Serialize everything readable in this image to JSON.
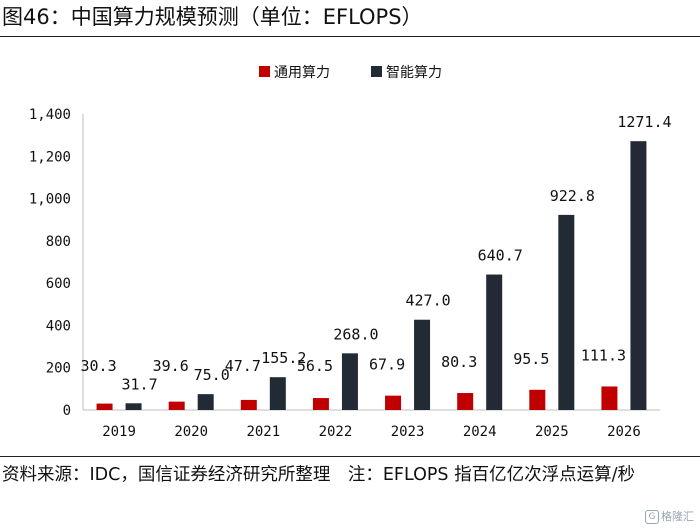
{
  "figure_title": "图46：中国算力规模预测（单位：EFLOPS）",
  "source_note": "资料来源：IDC，国信证券经济研究所整理　注：EFLOPS 指百亿亿次浮点运算/秒",
  "watermark": "格隆汇",
  "watermark_glyph": "G",
  "colors": {
    "general": "#c00000",
    "intelligent": "#222a35",
    "axis": "#bfbfbf",
    "text": "#111111"
  },
  "chart_data": {
    "type": "bar",
    "title": "中国算力规模预测（单位：EFLOPS）",
    "xlabel": "",
    "ylabel": "",
    "ylim": [
      0,
      1400
    ],
    "y_ticks": [
      0,
      200,
      400,
      600,
      800,
      1000,
      1200,
      1400
    ],
    "y_tick_labels": [
      "0",
      "200",
      "400",
      "600",
      "800",
      "1,000",
      "1,200",
      "1,400"
    ],
    "categories": [
      "2019",
      "2020",
      "2021",
      "2022",
      "2023",
      "2024",
      "2025",
      "2026"
    ],
    "legend_position": "top",
    "grid": false,
    "series": [
      {
        "name": "通用算力",
        "color": "#c00000",
        "values": [
          30.3,
          39.6,
          47.7,
          56.5,
          67.9,
          80.3,
          95.5,
          111.3
        ],
        "labels": [
          "30.3",
          "39.6",
          "47.7",
          "56.5",
          "67.9",
          "80.3",
          "95.5",
          "111.3"
        ]
      },
      {
        "name": "智能算力",
        "color": "#222a35",
        "values": [
          31.7,
          75.0,
          155.2,
          268.0,
          427.0,
          640.7,
          922.8,
          1271.4
        ],
        "labels": [
          "31.7",
          "75.0",
          "155.2",
          "268.0",
          "427.0",
          "640.7",
          "922.8",
          "1271.4"
        ]
      }
    ]
  }
}
